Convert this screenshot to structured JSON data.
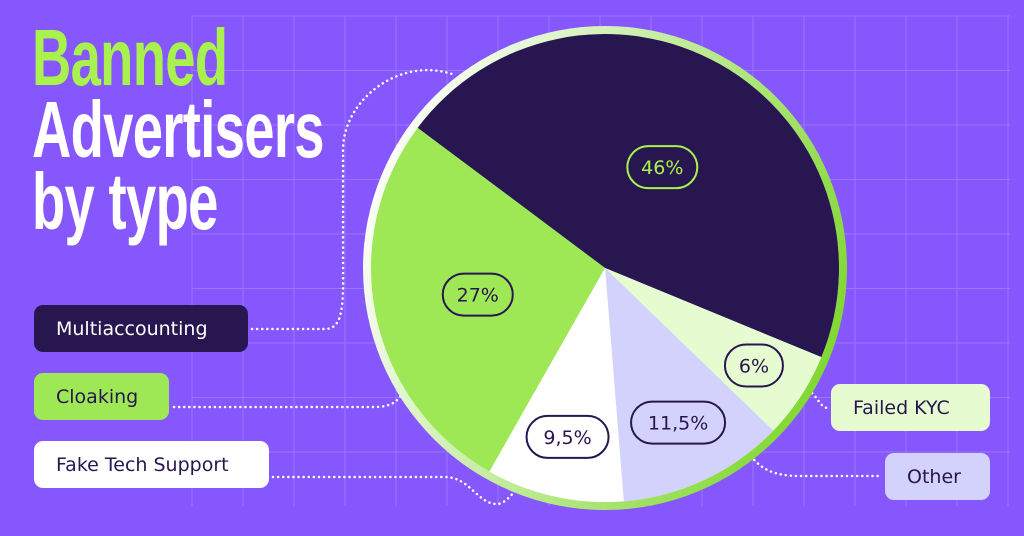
{
  "title": {
    "line1": "Banned",
    "line2": "Advertisers",
    "line3": "by type"
  },
  "colors": {
    "background": "#8557fd",
    "title_accent": "#a9f24e",
    "ring": "#7dd62a"
  },
  "chart_data": {
    "type": "pie",
    "title": "Banned Advertisers by type",
    "legend_placement": "left and right of pie",
    "slices": [
      {
        "name": "Multiaccounting",
        "value": 46,
        "label": "46%",
        "color": "#27164f",
        "text_color": "#a9f24e"
      },
      {
        "name": "Failed KYC",
        "value": 6,
        "label": "6%",
        "color": "#e6fcd0",
        "text_color": "#27164f"
      },
      {
        "name": "Other",
        "value": 11.5,
        "label": "11,5%",
        "color": "#d2d2fd",
        "text_color": "#27164f"
      },
      {
        "name": "Fake Tech Support",
        "value": 9.5,
        "label": "9,5%",
        "color": "#ffffff",
        "text_color": "#27164f"
      },
      {
        "name": "Cloaking",
        "value": 27,
        "label": "27%",
        "color": "#9ee855",
        "text_color": "#27164f"
      }
    ]
  }
}
